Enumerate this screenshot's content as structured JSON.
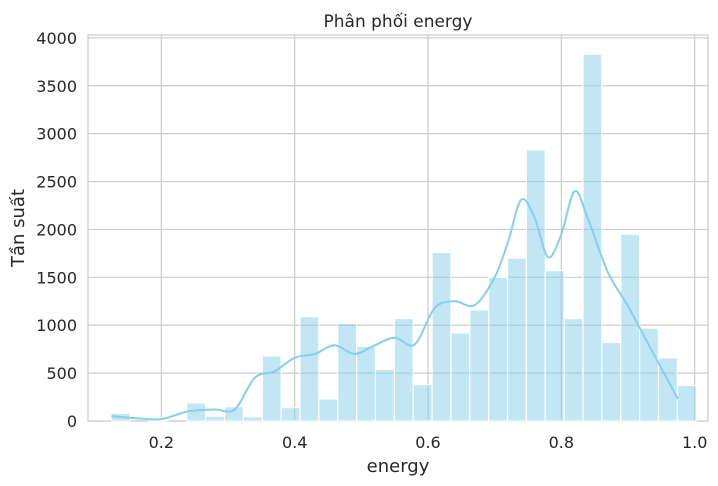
{
  "chart_data": {
    "type": "bar",
    "subtype": "histogram-with-kde",
    "title": "Phân phối energy",
    "xlabel": "energy",
    "ylabel": "Tần suất",
    "xlim": [
      0.09,
      1.02
    ],
    "ylim": [
      0,
      4030
    ],
    "x_ticks": [
      0.2,
      0.4,
      0.6,
      0.8,
      1.0
    ],
    "x_tick_labels": [
      "0.2",
      "0.4",
      "0.6",
      "0.8",
      "1.0"
    ],
    "y_ticks": [
      0,
      500,
      1000,
      1500,
      2000,
      2500,
      3000,
      3500,
      4000
    ],
    "y_tick_labels": [
      "0",
      "500",
      "1000",
      "1500",
      "2000",
      "2500",
      "3000",
      "3500",
      "4000"
    ],
    "grid": true,
    "bar_color": "#87ceeb",
    "kde_color": "#87ceeb",
    "bins": {
      "start": 0.125,
      "width": 0.0283,
      "counts": [
        80,
        0,
        5,
        0,
        190,
        50,
        150,
        45,
        680,
        140,
        1090,
        230,
        1020,
        780,
        540,
        1070,
        380,
        1760,
        920,
        1160,
        1500,
        1700,
        2830,
        1570,
        1070,
        3830,
        820,
        1950,
        970,
        660,
        370
      ]
    },
    "kde": {
      "x": [
        0.125,
        0.16,
        0.2,
        0.24,
        0.28,
        0.31,
        0.34,
        0.37,
        0.4,
        0.43,
        0.46,
        0.49,
        0.52,
        0.55,
        0.58,
        0.61,
        0.64,
        0.67,
        0.7,
        0.72,
        0.74,
        0.76,
        0.78,
        0.8,
        0.82,
        0.84,
        0.87,
        0.9,
        0.94,
        0.975
      ],
      "y": [
        50,
        30,
        20,
        100,
        120,
        120,
        450,
        520,
        660,
        700,
        790,
        700,
        790,
        870,
        800,
        1180,
        1250,
        1210,
        1500,
        1870,
        2310,
        2120,
        1710,
        1950,
        2400,
        2110,
        1550,
        1200,
        680,
        230
      ]
    }
  }
}
